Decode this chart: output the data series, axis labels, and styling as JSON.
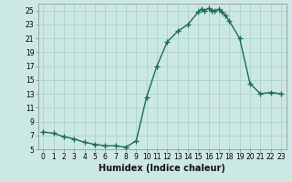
{
  "xlabel": "Humidex (Indice chaleur)",
  "background_color": "#cce8e4",
  "line_color": "#1a6b5a",
  "grid_color": "#aad4cc",
  "x_values": [
    0,
    1,
    2,
    3,
    4,
    5,
    6,
    7,
    8,
    9,
    10,
    11,
    12,
    13,
    14,
    15,
    15.3,
    15.6,
    16,
    16.3,
    16.6,
    17,
    17.3,
    17.6,
    18,
    19,
    20,
    21,
    22,
    23
  ],
  "y_values": [
    7.5,
    7.3,
    6.8,
    6.5,
    6.0,
    5.7,
    5.5,
    5.5,
    5.3,
    6.2,
    12.5,
    17.0,
    20.5,
    22.0,
    23.0,
    24.8,
    25.2,
    25.0,
    25.3,
    25.0,
    25.0,
    25.2,
    24.8,
    24.3,
    23.5,
    21.0,
    14.5,
    13.0,
    13.2,
    13.0
  ],
  "ylim": [
    5,
    26
  ],
  "xlim": [
    -0.5,
    23.5
  ],
  "yticks": [
    5,
    7,
    9,
    11,
    13,
    15,
    17,
    19,
    21,
    23,
    25
  ],
  "xticks": [
    0,
    1,
    2,
    3,
    4,
    5,
    6,
    7,
    8,
    9,
    10,
    11,
    12,
    13,
    14,
    15,
    16,
    17,
    18,
    19,
    20,
    21,
    22,
    23
  ],
  "xtick_labels": [
    "0",
    "1",
    "2",
    "3",
    "4",
    "5",
    "6",
    "7",
    "8",
    "9",
    "10",
    "11",
    "12",
    "13",
    "14",
    "15",
    "16",
    "17",
    "18",
    "19",
    "20",
    "21",
    "22",
    "23"
  ],
  "marker": "+",
  "markersize": 4,
  "markeredgewidth": 1.0,
  "linewidth": 1.0,
  "xlabel_fontsize": 7,
  "tick_fontsize": 5.5
}
